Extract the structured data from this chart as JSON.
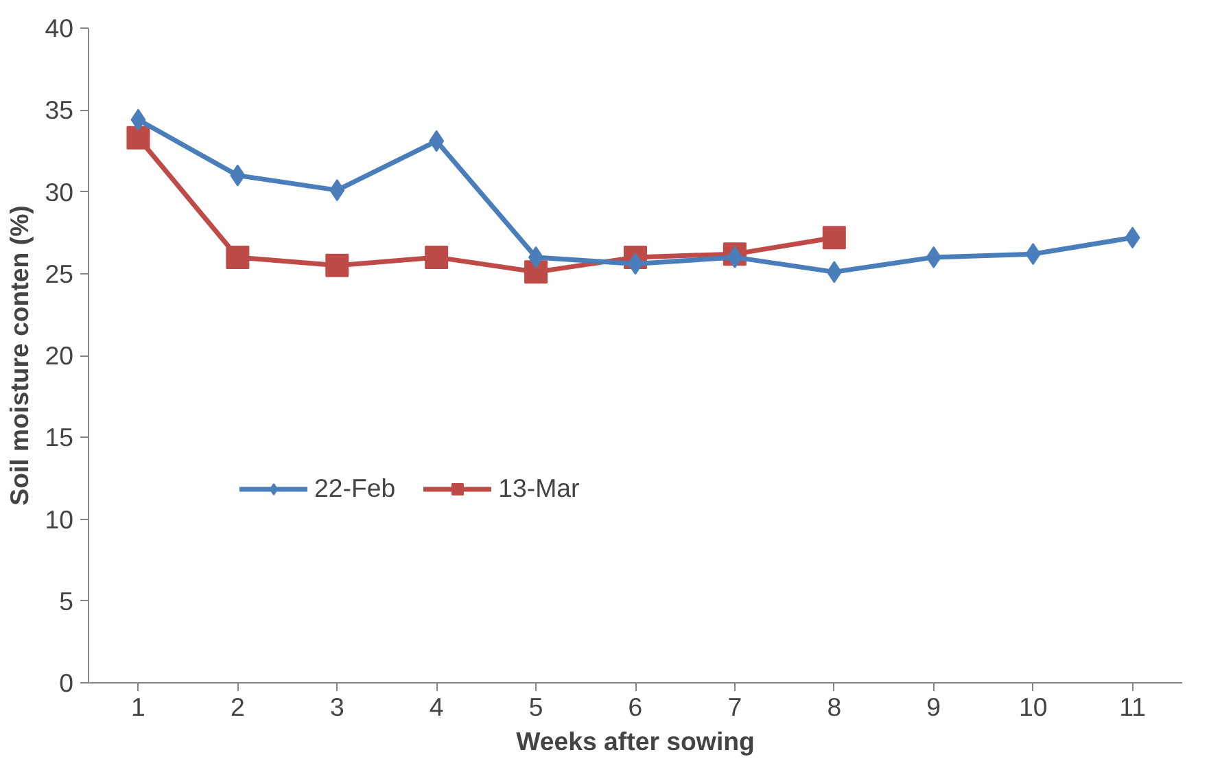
{
  "chart_data": {
    "type": "line",
    "xlabel": "Weeks after sowing",
    "ylabel": "Soil moisture conten (%)",
    "categories": [
      "1",
      "2",
      "3",
      "4",
      "5",
      "6",
      "7",
      "8",
      "9",
      "10",
      "11"
    ],
    "series": [
      {
        "name": "22-Feb",
        "color": "#4a7ebb",
        "marker": "diamond",
        "values": [
          34.4,
          31.0,
          30.1,
          33.1,
          26.0,
          25.6,
          26.0,
          25.1,
          26.0,
          26.2,
          27.2
        ]
      },
      {
        "name": "13-Mar",
        "color": "#be4b48",
        "marker": "square",
        "values": [
          33.3,
          26.0,
          25.5,
          26.0,
          25.1,
          26.0,
          26.2,
          27.2,
          null,
          null,
          null
        ]
      }
    ],
    "ylim": [
      0,
      40
    ],
    "yticks": [
      0,
      5,
      10,
      15,
      20,
      25,
      30,
      35,
      40
    ],
    "grid": false,
    "legend": "left"
  }
}
